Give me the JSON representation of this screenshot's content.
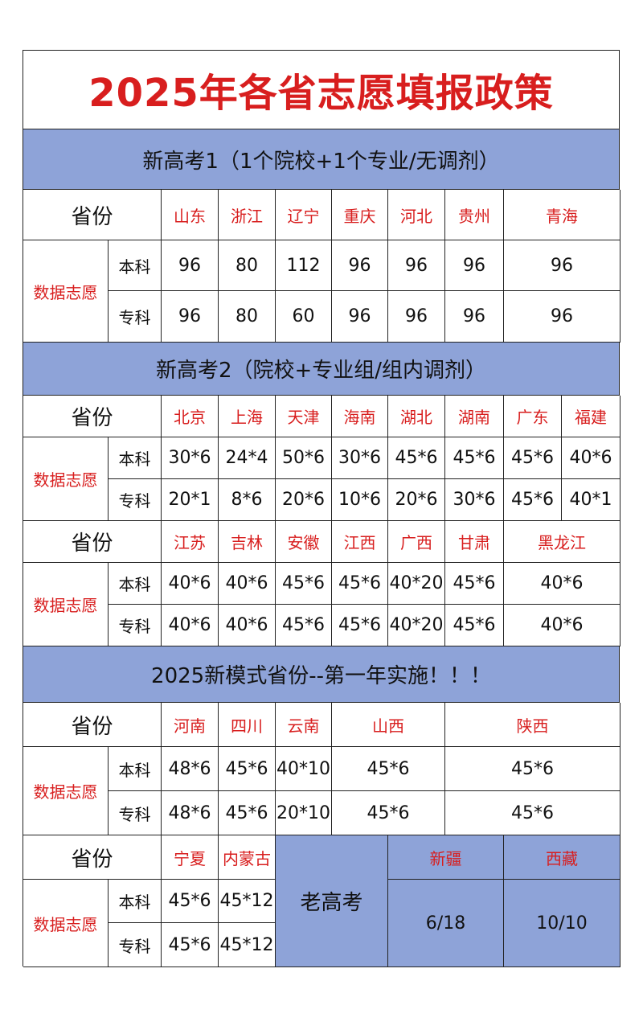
{
  "title": "2025年各省志愿填报政策",
  "section1": {
    "heading": "新高考1（1个院校+1个专业/无调剂）",
    "province_header": "省份",
    "data_label": "数据志愿",
    "rows": [
      "本科",
      "专科"
    ],
    "provinces": [
      "山东",
      "浙江",
      "辽宁",
      "重庆",
      "河北",
      "贵州",
      "青海"
    ],
    "benke": [
      "96",
      "80",
      "112",
      "96",
      "96",
      "96",
      "96"
    ],
    "zhuanke": [
      "96",
      "80",
      "60",
      "96",
      "96",
      "96",
      "96"
    ]
  },
  "section2": {
    "heading": "新高考2（院校+专业组/组内调剂）",
    "province_header": "省份",
    "data_label": "数据志愿",
    "rows": [
      "本科",
      "专科"
    ],
    "groupA": {
      "provinces": [
        "北京",
        "上海",
        "天津",
        "海南",
        "湖北",
        "湖南",
        "广东",
        "福建"
      ],
      "benke": [
        "30*6",
        "24*4",
        "50*6",
        "30*6",
        "45*6",
        "45*6",
        "45*6",
        "40*6"
      ],
      "zhuanke": [
        "20*1",
        "8*6",
        "20*6",
        "10*6",
        "20*6",
        "30*6",
        "45*6",
        "40*1"
      ]
    },
    "groupB": {
      "provinces": [
        "江苏",
        "吉林",
        "安徽",
        "江西",
        "广西",
        "甘肃",
        "黑龙江"
      ],
      "benke": [
        "40*6",
        "40*6",
        "45*6",
        "45*6",
        "40*20",
        "45*6",
        "40*6"
      ],
      "zhuanke": [
        "40*6",
        "40*6",
        "45*6",
        "45*6",
        "40*20",
        "45*6",
        "40*6"
      ]
    }
  },
  "section3": {
    "heading": "2025新模式省份--第一年实施！！！",
    "province_header": "省份",
    "data_label": "数据志愿",
    "rows": [
      "本科",
      "专科"
    ],
    "groupA": {
      "provinces": [
        "河南",
        "四川",
        "云南",
        "山西",
        "陕西"
      ],
      "benke": [
        "48*6",
        "45*6",
        "40*10",
        "45*6",
        "45*6"
      ],
      "zhuanke": [
        "48*6",
        "45*6",
        "20*10",
        "45*6",
        "45*6"
      ]
    },
    "groupB": {
      "provinces": [
        "宁夏",
        "内蒙古"
      ],
      "benke": [
        "45*6",
        "45*12"
      ],
      "zhuanke": [
        "45*6",
        "45*12"
      ]
    },
    "old_label": "老高考",
    "old_provinces": [
      "新疆",
      "西藏"
    ],
    "old_values": [
      "6/18",
      "10/10"
    ]
  },
  "colors": {
    "accent_red": "#d81e1e",
    "band_blue": "#8ea3d8"
  }
}
